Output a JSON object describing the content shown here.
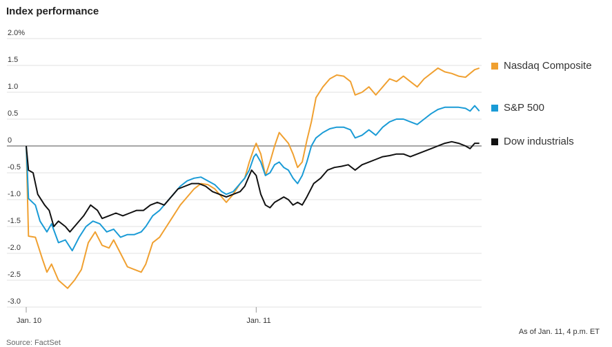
{
  "title": "Index performance",
  "footnote": "As of Jan. 11, 4 p.m. ET",
  "source": "Source: FactSet",
  "chart_data": {
    "type": "line",
    "ylim": [
      -3.0,
      2.0
    ],
    "y_ticks": [
      2.0,
      1.5,
      1.0,
      0.5,
      0,
      -0.5,
      -1.0,
      -1.5,
      -2.0,
      -2.5,
      -3.0
    ],
    "y_tick_labels": [
      "2.0%",
      "1.5",
      "1.0",
      "0.5",
      "0",
      "-0.5",
      "-1.0",
      "-1.5",
      "-2.0",
      "-2.5",
      "-3.0"
    ],
    "x_tick_labels": [
      "Jan. 10",
      "Jan. 11"
    ],
    "x_tick_positions": [
      0,
      1
    ],
    "xlim": [
      0,
      1.98
    ],
    "grid": true,
    "legend_position": "right",
    "series": [
      {
        "name": "Nasdaq Composite",
        "color": "#f0a030",
        "points": [
          [
            0,
            0
          ],
          [
            0.01,
            -1.68
          ],
          [
            0.04,
            -1.7
          ],
          [
            0.07,
            -2.1
          ],
          [
            0.09,
            -2.35
          ],
          [
            0.11,
            -2.2
          ],
          [
            0.14,
            -2.5
          ],
          [
            0.18,
            -2.65
          ],
          [
            0.21,
            -2.5
          ],
          [
            0.24,
            -2.3
          ],
          [
            0.27,
            -1.8
          ],
          [
            0.3,
            -1.6
          ],
          [
            0.33,
            -1.85
          ],
          [
            0.36,
            -1.9
          ],
          [
            0.38,
            -1.75
          ],
          [
            0.41,
            -2.0
          ],
          [
            0.44,
            -2.25
          ],
          [
            0.47,
            -2.3
          ],
          [
            0.5,
            -2.35
          ],
          [
            0.52,
            -2.2
          ],
          [
            0.55,
            -1.8
          ],
          [
            0.58,
            -1.7
          ],
          [
            0.61,
            -1.5
          ],
          [
            0.64,
            -1.3
          ],
          [
            0.67,
            -1.1
          ],
          [
            0.7,
            -0.95
          ],
          [
            0.73,
            -0.8
          ],
          [
            0.76,
            -0.7
          ],
          [
            0.79,
            -0.72
          ],
          [
            0.82,
            -0.8
          ],
          [
            0.85,
            -0.95
          ],
          [
            0.87,
            -1.05
          ],
          [
            0.9,
            -0.9
          ],
          [
            0.93,
            -0.7
          ],
          [
            0.95,
            -0.6
          ],
          [
            0.97,
            -0.3
          ],
          [
            0.99,
            -0.05
          ],
          [
            1.0,
            0.05
          ],
          [
            1.02,
            -0.15
          ],
          [
            1.04,
            -0.55
          ],
          [
            1.06,
            -0.3
          ],
          [
            1.08,
            0.0
          ],
          [
            1.1,
            0.25
          ],
          [
            1.12,
            0.15
          ],
          [
            1.14,
            0.05
          ],
          [
            1.16,
            -0.15
          ],
          [
            1.18,
            -0.4
          ],
          [
            1.2,
            -0.3
          ],
          [
            1.22,
            0.1
          ],
          [
            1.24,
            0.45
          ],
          [
            1.26,
            0.9
          ],
          [
            1.29,
            1.1
          ],
          [
            1.32,
            1.25
          ],
          [
            1.35,
            1.32
          ],
          [
            1.38,
            1.3
          ],
          [
            1.41,
            1.2
          ],
          [
            1.43,
            0.95
          ],
          [
            1.46,
            1.0
          ],
          [
            1.49,
            1.1
          ],
          [
            1.52,
            0.95
          ],
          [
            1.55,
            1.1
          ],
          [
            1.58,
            1.25
          ],
          [
            1.61,
            1.2
          ],
          [
            1.64,
            1.3
          ],
          [
            1.67,
            1.2
          ],
          [
            1.7,
            1.1
          ],
          [
            1.73,
            1.25
          ],
          [
            1.76,
            1.35
          ],
          [
            1.79,
            1.45
          ],
          [
            1.82,
            1.38
          ],
          [
            1.85,
            1.35
          ],
          [
            1.88,
            1.3
          ],
          [
            1.91,
            1.28
          ],
          [
            1.93,
            1.35
          ],
          [
            1.95,
            1.42
          ],
          [
            1.97,
            1.45
          ]
        ]
      },
      {
        "name": "S&P 500",
        "color": "#1a9bd6",
        "points": [
          [
            0,
            0
          ],
          [
            0.01,
            -0.98
          ],
          [
            0.04,
            -1.1
          ],
          [
            0.06,
            -1.4
          ],
          [
            0.09,
            -1.6
          ],
          [
            0.11,
            -1.45
          ],
          [
            0.14,
            -1.8
          ],
          [
            0.17,
            -1.75
          ],
          [
            0.2,
            -1.95
          ],
          [
            0.23,
            -1.7
          ],
          [
            0.26,
            -1.5
          ],
          [
            0.29,
            -1.4
          ],
          [
            0.32,
            -1.45
          ],
          [
            0.35,
            -1.6
          ],
          [
            0.38,
            -1.55
          ],
          [
            0.41,
            -1.7
          ],
          [
            0.44,
            -1.65
          ],
          [
            0.47,
            -1.65
          ],
          [
            0.5,
            -1.6
          ],
          [
            0.52,
            -1.5
          ],
          [
            0.55,
            -1.3
          ],
          [
            0.58,
            -1.2
          ],
          [
            0.61,
            -1.05
          ],
          [
            0.64,
            -0.9
          ],
          [
            0.67,
            -0.75
          ],
          [
            0.7,
            -0.65
          ],
          [
            0.73,
            -0.6
          ],
          [
            0.76,
            -0.58
          ],
          [
            0.79,
            -0.65
          ],
          [
            0.82,
            -0.72
          ],
          [
            0.85,
            -0.85
          ],
          [
            0.87,
            -0.9
          ],
          [
            0.9,
            -0.85
          ],
          [
            0.93,
            -0.7
          ],
          [
            0.95,
            -0.6
          ],
          [
            0.97,
            -0.45
          ],
          [
            0.99,
            -0.2
          ],
          [
            1.0,
            -0.15
          ],
          [
            1.02,
            -0.3
          ],
          [
            1.04,
            -0.55
          ],
          [
            1.06,
            -0.5
          ],
          [
            1.08,
            -0.35
          ],
          [
            1.1,
            -0.3
          ],
          [
            1.12,
            -0.4
          ],
          [
            1.14,
            -0.45
          ],
          [
            1.16,
            -0.6
          ],
          [
            1.18,
            -0.7
          ],
          [
            1.2,
            -0.55
          ],
          [
            1.22,
            -0.3
          ],
          [
            1.24,
            0.0
          ],
          [
            1.26,
            0.15
          ],
          [
            1.29,
            0.25
          ],
          [
            1.32,
            0.32
          ],
          [
            1.35,
            0.35
          ],
          [
            1.38,
            0.35
          ],
          [
            1.41,
            0.3
          ],
          [
            1.43,
            0.15
          ],
          [
            1.46,
            0.2
          ],
          [
            1.49,
            0.3
          ],
          [
            1.52,
            0.2
          ],
          [
            1.55,
            0.35
          ],
          [
            1.58,
            0.45
          ],
          [
            1.61,
            0.5
          ],
          [
            1.64,
            0.5
          ],
          [
            1.67,
            0.45
          ],
          [
            1.7,
            0.4
          ],
          [
            1.73,
            0.5
          ],
          [
            1.76,
            0.6
          ],
          [
            1.79,
            0.68
          ],
          [
            1.82,
            0.72
          ],
          [
            1.85,
            0.72
          ],
          [
            1.88,
            0.72
          ],
          [
            1.91,
            0.7
          ],
          [
            1.93,
            0.65
          ],
          [
            1.95,
            0.75
          ],
          [
            1.97,
            0.65
          ]
        ]
      },
      {
        "name": "Dow industrials",
        "color": "#111111",
        "points": [
          [
            0,
            0
          ],
          [
            0.01,
            -0.45
          ],
          [
            0.03,
            -0.5
          ],
          [
            0.05,
            -0.9
          ],
          [
            0.08,
            -1.1
          ],
          [
            0.1,
            -1.2
          ],
          [
            0.12,
            -1.5
          ],
          [
            0.14,
            -1.4
          ],
          [
            0.17,
            -1.5
          ],
          [
            0.19,
            -1.6
          ],
          [
            0.22,
            -1.45
          ],
          [
            0.25,
            -1.3
          ],
          [
            0.28,
            -1.1
          ],
          [
            0.31,
            -1.2
          ],
          [
            0.33,
            -1.35
          ],
          [
            0.36,
            -1.3
          ],
          [
            0.39,
            -1.25
          ],
          [
            0.42,
            -1.3
          ],
          [
            0.45,
            -1.25
          ],
          [
            0.48,
            -1.2
          ],
          [
            0.51,
            -1.2
          ],
          [
            0.54,
            -1.1
          ],
          [
            0.57,
            -1.05
          ],
          [
            0.6,
            -1.1
          ],
          [
            0.63,
            -0.95
          ],
          [
            0.66,
            -0.8
          ],
          [
            0.69,
            -0.75
          ],
          [
            0.72,
            -0.7
          ],
          [
            0.75,
            -0.7
          ],
          [
            0.78,
            -0.75
          ],
          [
            0.81,
            -0.85
          ],
          [
            0.84,
            -0.9
          ],
          [
            0.87,
            -0.95
          ],
          [
            0.9,
            -0.9
          ],
          [
            0.93,
            -0.85
          ],
          [
            0.95,
            -0.75
          ],
          [
            0.98,
            -0.45
          ],
          [
            1.0,
            -0.55
          ],
          [
            1.02,
            -0.9
          ],
          [
            1.04,
            -1.1
          ],
          [
            1.06,
            -1.15
          ],
          [
            1.08,
            -1.05
          ],
          [
            1.1,
            -1.0
          ],
          [
            1.12,
            -0.95
          ],
          [
            1.14,
            -1.0
          ],
          [
            1.16,
            -1.1
          ],
          [
            1.18,
            -1.05
          ],
          [
            1.2,
            -1.1
          ],
          [
            1.22,
            -0.95
          ],
          [
            1.25,
            -0.7
          ],
          [
            1.28,
            -0.6
          ],
          [
            1.31,
            -0.45
          ],
          [
            1.34,
            -0.4
          ],
          [
            1.37,
            -0.38
          ],
          [
            1.4,
            -0.35
          ],
          [
            1.43,
            -0.45
          ],
          [
            1.46,
            -0.35
          ],
          [
            1.49,
            -0.3
          ],
          [
            1.52,
            -0.25
          ],
          [
            1.55,
            -0.2
          ],
          [
            1.58,
            -0.18
          ],
          [
            1.61,
            -0.15
          ],
          [
            1.64,
            -0.15
          ],
          [
            1.67,
            -0.2
          ],
          [
            1.7,
            -0.15
          ],
          [
            1.73,
            -0.1
          ],
          [
            1.76,
            -0.05
          ],
          [
            1.79,
            0.0
          ],
          [
            1.82,
            0.05
          ],
          [
            1.85,
            0.08
          ],
          [
            1.88,
            0.05
          ],
          [
            1.91,
            0.0
          ],
          [
            1.93,
            -0.05
          ],
          [
            1.95,
            0.05
          ],
          [
            1.97,
            0.05
          ]
        ]
      }
    ]
  }
}
